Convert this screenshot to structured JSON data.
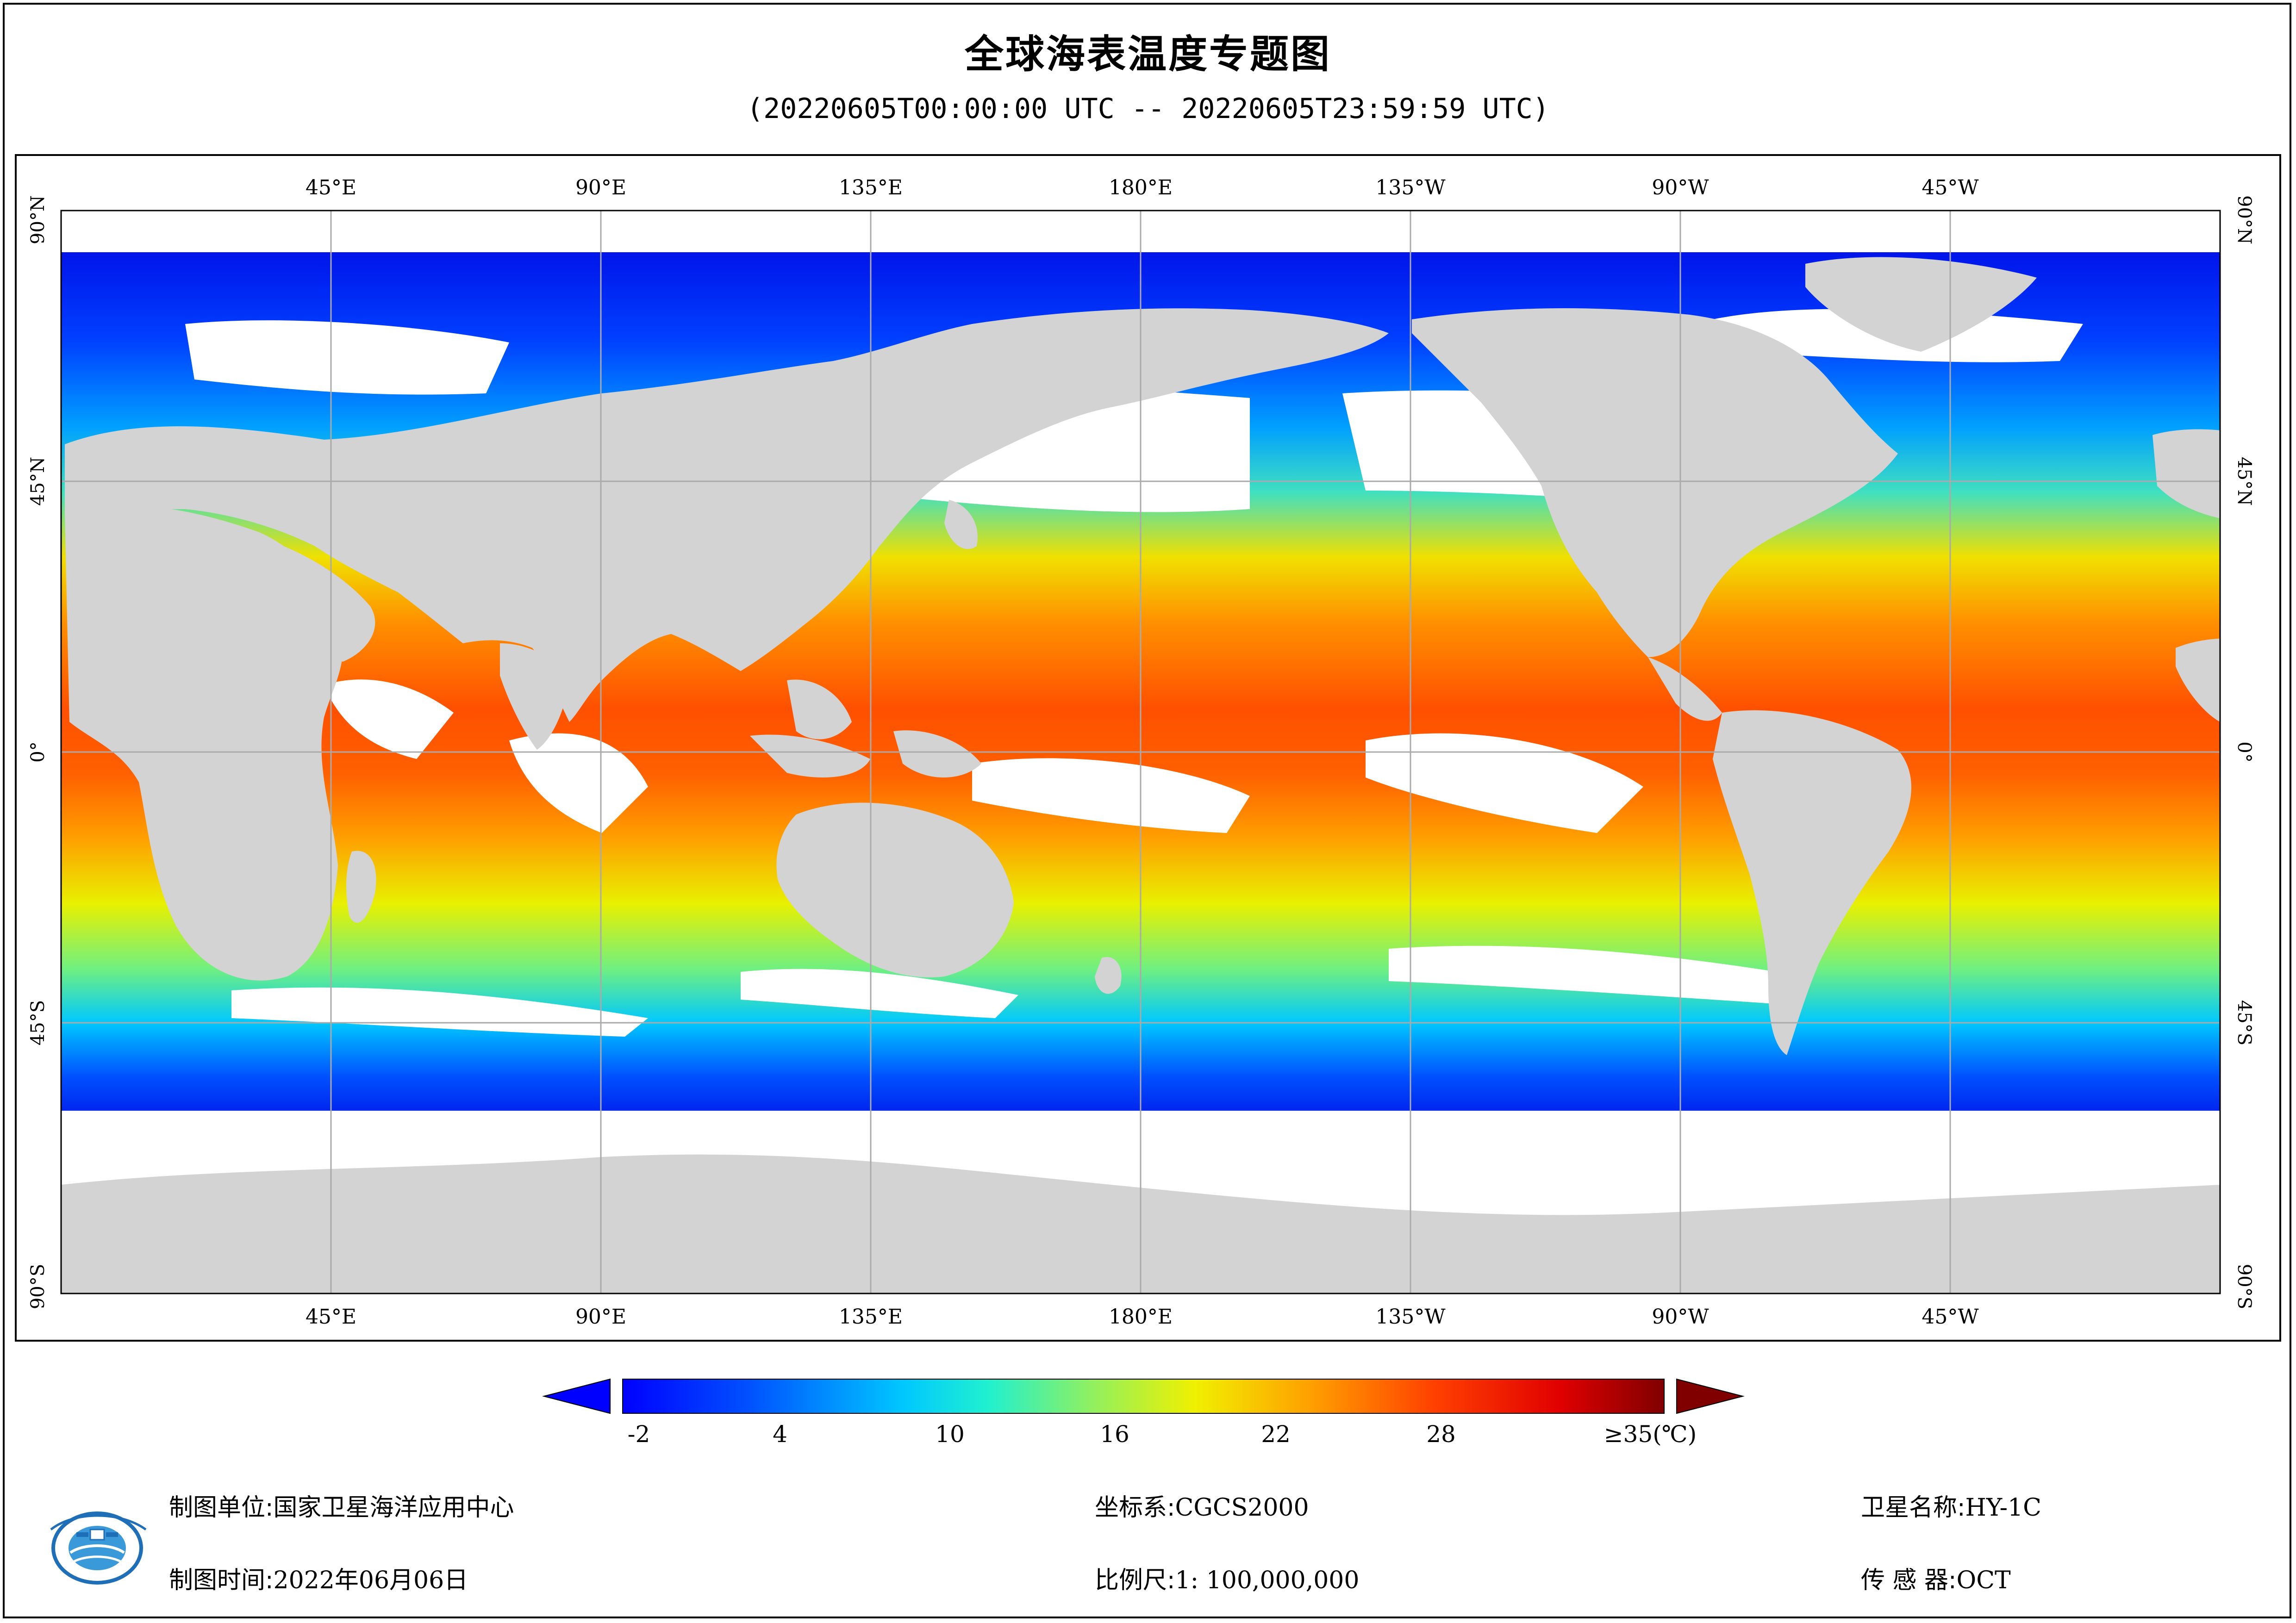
{
  "title": "全球海表温度专题图",
  "subtitle": "(20220605T00:00:00 UTC -- 20220605T23:59:59 UTC)",
  "map": {
    "lon_labels": [
      "45°E",
      "90°E",
      "135°E",
      "180°E",
      "135°W",
      "90°W",
      "45°W"
    ],
    "lat_labels": [
      "90°N",
      "45°N",
      "0°",
      "45°S",
      "90°S"
    ],
    "land_color": "#d3d3d3",
    "nodata_color": "#ffffff",
    "grid_color": "#aaaaaa"
  },
  "colorbar": {
    "tick_labels": [
      "-2",
      "4",
      "10",
      "16",
      "22",
      "28",
      "≥35(℃)"
    ],
    "min": -2,
    "max": 35,
    "unit": "℃",
    "under_color": "#0000ff",
    "over_color": "#800000",
    "colormap": "jet"
  },
  "info": {
    "agency_label": "制图单位:",
    "agency_value": "国家卫星海洋应用中心",
    "date_label": "制图时间:",
    "date_value": "2022年06月06日",
    "crs_label": "坐标系:",
    "crs_value": "CGCS2000",
    "scale_label": "比例尺:",
    "scale_value": "1: 100,000,000",
    "satellite_label": "卫星名称:",
    "satellite_value": "HY-1C",
    "sensor_label": "传 感 器:",
    "sensor_value": "OCT"
  }
}
